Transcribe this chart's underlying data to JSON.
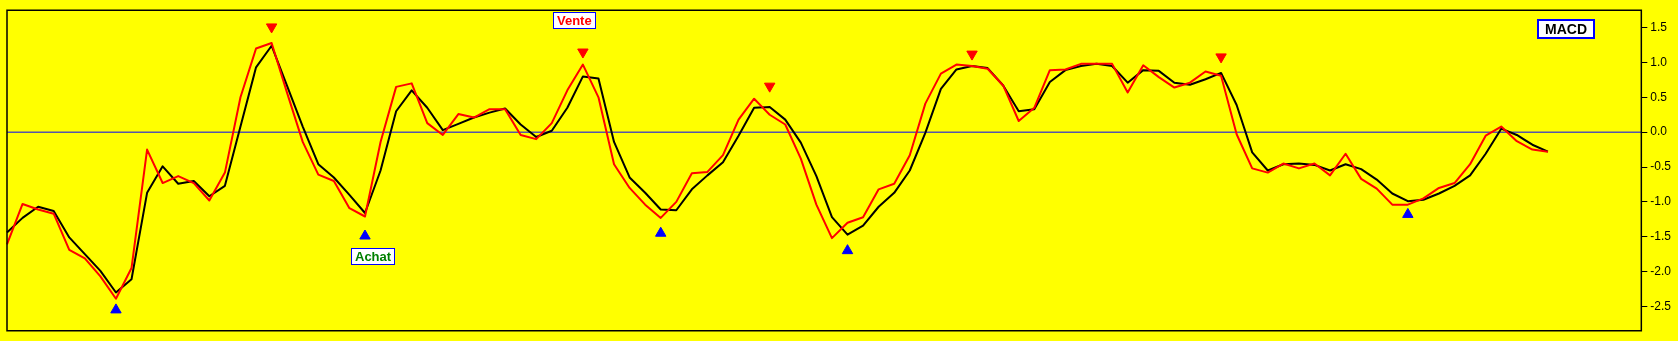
{
  "chart_data": {
    "type": "line",
    "title": "MACD",
    "annotations": [
      "Vente",
      "Achat"
    ],
    "categories": [
      null,
      null,
      null,
      null,
      null,
      null,
      null,
      null,
      null,
      null,
      null,
      null,
      null,
      null,
      null,
      null,
      null,
      null,
      null,
      null,
      null,
      null,
      null,
      null,
      null,
      null,
      null,
      null,
      null,
      null,
      null,
      null,
      null,
      null,
      null,
      null,
      null,
      null,
      null,
      null,
      null,
      null,
      null,
      null,
      null,
      null,
      null,
      null,
      null,
      null,
      null,
      null,
      null,
      null,
      null,
      null,
      null,
      null,
      null,
      null,
      null,
      null,
      null,
      null,
      null,
      null,
      null,
      null,
      null,
      null,
      null,
      null,
      null,
      null,
      null,
      null,
      null,
      null,
      null,
      null,
      null,
      null,
      null,
      null,
      null,
      null,
      null,
      null,
      null,
      null,
      null,
      null,
      null,
      null,
      null,
      null,
      null,
      null,
      null,
      null,
      null,
      null,
      null,
      null,
      null,
      null
    ],
    "series": [
      {
        "color": "#ff0000",
        "values": [
          -1.61,
          -1.03,
          -1.11,
          -1.17,
          -1.69,
          -1.81,
          -2.07,
          -2.39,
          -1.95,
          -0.25,
          -0.73,
          -0.63,
          -0.73,
          -0.98,
          -0.58,
          0.5,
          1.2,
          1.28,
          0.56,
          -0.14,
          -0.61,
          -0.7,
          -1.09,
          -1.21,
          -0.14,
          0.65,
          0.7,
          0.13,
          -0.04,
          0.26,
          0.21,
          0.33,
          0.33,
          -0.04,
          -0.1,
          0.13,
          0.6,
          0.97,
          0.5,
          -0.46,
          -0.8,
          -1.04,
          -1.23,
          -1.0,
          -0.59,
          -0.57,
          -0.33,
          0.18,
          0.48,
          0.25,
          0.11,
          -0.38,
          -1.04,
          -1.52,
          -1.3,
          -1.22,
          -0.82,
          -0.74,
          -0.33,
          0.41,
          0.84,
          0.97,
          0.95,
          0.91,
          0.67,
          0.16,
          0.35,
          0.89,
          0.9,
          0.98,
          0.98,
          0.98,
          0.57,
          0.96,
          0.79,
          0.64,
          0.71,
          0.87,
          0.81,
          -0.03,
          -0.52,
          -0.58,
          -0.45,
          -0.52,
          -0.45,
          -0.62,
          -0.31,
          -0.67,
          -0.81,
          -1.04,
          -1.04,
          -0.95,
          -0.8,
          -0.73,
          -0.46,
          -0.05,
          0.08,
          -0.13,
          -0.25,
          -0.28,
          null,
          null,
          null,
          null,
          null,
          null
        ]
      },
      {
        "color": "#000000",
        "values": [
          -1.44,
          -1.23,
          -1.07,
          -1.13,
          -1.51,
          -1.75,
          -1.99,
          -2.3,
          -2.11,
          -0.87,
          -0.49,
          -0.74,
          -0.7,
          -0.92,
          -0.77,
          0.08,
          0.93,
          1.24,
          0.66,
          0.08,
          -0.46,
          -0.65,
          -0.9,
          -1.16,
          -0.55,
          0.3,
          0.6,
          0.35,
          0.03,
          0.12,
          0.21,
          0.28,
          0.34,
          0.11,
          -0.07,
          0.02,
          0.35,
          0.8,
          0.77,
          -0.14,
          -0.65,
          -0.87,
          -1.11,
          -1.12,
          -0.82,
          -0.62,
          -0.43,
          -0.05,
          0.35,
          0.36,
          0.18,
          -0.15,
          -0.63,
          -1.22,
          -1.47,
          -1.34,
          -1.07,
          -0.87,
          -0.55,
          -0.01,
          0.62,
          0.9,
          0.95,
          0.92,
          0.67,
          0.3,
          0.33,
          0.72,
          0.89,
          0.95,
          0.98,
          0.95,
          0.71,
          0.89,
          0.88,
          0.71,
          0.68,
          0.76,
          0.85,
          0.39,
          -0.29,
          -0.55,
          -0.46,
          -0.45,
          -0.47,
          -0.55,
          -0.46,
          -0.53,
          -0.68,
          -0.88,
          -0.99,
          -0.97,
          -0.88,
          -0.77,
          -0.62,
          -0.31,
          0.05,
          -0.04,
          -0.18,
          -0.28,
          null,
          null,
          null,
          null,
          null,
          null
        ]
      },
      {
        "type": "scatter",
        "color": "#ff0000",
        "marker": "triangle",
        "values": [
          null,
          null,
          null,
          null,
          null,
          null,
          null,
          null,
          null,
          null,
          null,
          null,
          null,
          null,
          null,
          null,
          null,
          1.51,
          null,
          null,
          null,
          null,
          null,
          null,
          null,
          null,
          null,
          null,
          null,
          null,
          null,
          null,
          null,
          null,
          null,
          null,
          null,
          1.15,
          null,
          null,
          null,
          null,
          null,
          null,
          null,
          null,
          null,
          null,
          null,
          0.66,
          null,
          null,
          null,
          null,
          null,
          null,
          null,
          null,
          null,
          null,
          null,
          null,
          1.12,
          null,
          null,
          null,
          null,
          null,
          null,
          null,
          null,
          null,
          null,
          null,
          null,
          null,
          null,
          null,
          1.08,
          null,
          null,
          null,
          null,
          null,
          null,
          null,
          null,
          null,
          null,
          null,
          null,
          null,
          null,
          null,
          null,
          null,
          null,
          null,
          null,
          null,
          null,
          null,
          null,
          null,
          null,
          null
        ]
      },
      {
        "type": "scatter",
        "color": "#0000ff",
        "marker": "triangle",
        "values": [
          null,
          null,
          null,
          null,
          null,
          null,
          null,
          -2.55,
          null,
          null,
          null,
          null,
          null,
          null,
          null,
          null,
          null,
          null,
          null,
          null,
          null,
          null,
          null,
          -1.49,
          null,
          null,
          null,
          null,
          null,
          null,
          null,
          null,
          null,
          null,
          null,
          null,
          null,
          null,
          null,
          null,
          null,
          null,
          -1.45,
          null,
          null,
          null,
          null,
          null,
          null,
          null,
          null,
          null,
          null,
          null,
          -1.7,
          null,
          null,
          null,
          null,
          null,
          null,
          null,
          null,
          null,
          null,
          null,
          null,
          null,
          null,
          null,
          null,
          null,
          null,
          null,
          null,
          null,
          null,
          null,
          null,
          null,
          null,
          null,
          null,
          null,
          null,
          null,
          null,
          null,
          null,
          null,
          -1.18,
          null,
          null,
          null,
          null,
          null,
          null,
          null,
          null,
          null,
          null,
          null,
          null,
          null,
          null,
          null
        ]
      }
    ],
    "ylim": [
      -2.85,
      1.75
    ],
    "yticks": [
      {
        "value": 1.5,
        "label": "1.5"
      },
      {
        "value": 1,
        "label": "1.0"
      },
      {
        "value": 0.5,
        "label": "0.5"
      },
      {
        "value": 0,
        "label": "0.0"
      },
      {
        "value": -0.5,
        "label": "-0.5"
      },
      {
        "value": -1,
        "label": "-1.0"
      },
      {
        "value": -1.5,
        "label": "-1.5"
      },
      {
        "value": -2,
        "label": "-2.0"
      },
      {
        "value": -2.5,
        "label": "-2.5"
      }
    ],
    "ref_lines": [
      {
        "axis": "y",
        "value": 0,
        "color": "#0000ff"
      }
    ],
    "tick_labels": "y",
    "marker": "none",
    "line_style": "solid",
    "legend": false
  }
}
